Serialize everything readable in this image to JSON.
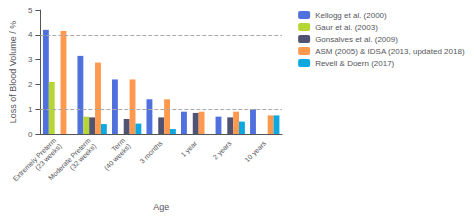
{
  "chart_data": {
    "type": "bar",
    "categories": [
      "Extremely Preterm\n(23 weeks)",
      "Moderate Preterm\n(32 weeks)",
      "Term\n(40 weeks)",
      "3 months",
      "1 year",
      "2 years",
      "10 years"
    ],
    "series": [
      {
        "name": "Kellogg et al. (2000)",
        "values": [
          4.2,
          3.15,
          2.2,
          1.4,
          0.9,
          0.7,
          1.0
        ]
      },
      {
        "name": "Gaur et al. (2003)",
        "values": [
          2.1,
          0.7,
          0.0,
          0.0,
          0.0,
          0.0,
          0.0
        ]
      },
      {
        "name": "Gonsalves et al. (2009)",
        "values": [
          0.0,
          0.67,
          0.6,
          0.67,
          0.85,
          0.67,
          0.0
        ]
      },
      {
        "name": "ASM (2005) & IDSA (2013, updated 2018)",
        "values": [
          4.15,
          2.88,
          2.2,
          1.4,
          0.9,
          0.9,
          0.75
        ]
      },
      {
        "name": "Revell & Doern (2017)",
        "values": [
          0.0,
          0.4,
          0.42,
          0.2,
          0.0,
          0.5,
          0.75
        ]
      }
    ],
    "xlabel": "Age",
    "ylabel": "Loss of Blood Volume / %",
    "ylim": [
      0,
      5
    ],
    "yticks": [
      0,
      1,
      2,
      3,
      4,
      5
    ],
    "hlines": [
      4.0,
      1.0
    ],
    "grid": false,
    "legend": "upper right"
  }
}
